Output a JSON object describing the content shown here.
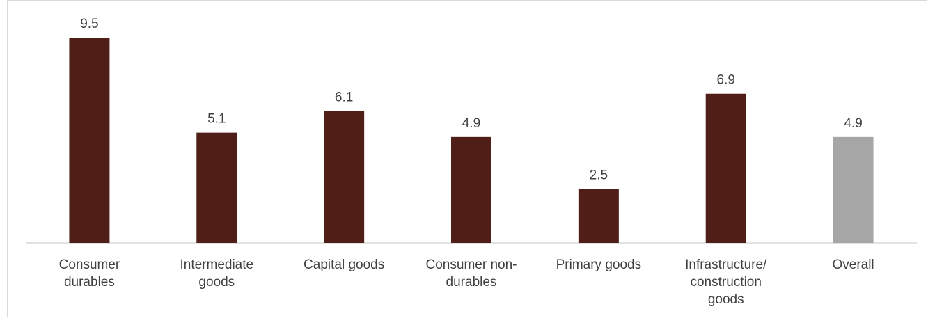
{
  "chart_data": {
    "type": "bar",
    "categories": [
      "Consumer durables",
      "Intermediate goods",
      "Capital goods",
      "Consumer non-durables",
      "Primary goods",
      "Infrastructure/ construction goods",
      "Overall"
    ],
    "category_label_lines": [
      [
        "Consumer",
        "durables"
      ],
      [
        "Intermediate",
        "goods"
      ],
      [
        "Capital goods"
      ],
      [
        "Consumer non-",
        "durables"
      ],
      [
        "Primary goods"
      ],
      [
        "Infrastructure/",
        "construction",
        "goods"
      ],
      [
        "Overall"
      ]
    ],
    "values": [
      9.5,
      5.1,
      6.1,
      4.9,
      2.5,
      6.9,
      4.9
    ],
    "value_labels": [
      "9.5",
      "5.1",
      "6.1",
      "4.9",
      "2.5",
      "6.9",
      "4.9"
    ],
    "bar_colors": [
      "#4f1e17",
      "#4f1e17",
      "#4f1e17",
      "#4f1e17",
      "#4f1e17",
      "#4f1e17",
      "#a6a6a6"
    ],
    "title": "",
    "xlabel": "",
    "ylabel": "",
    "ylim": [
      0,
      9.5
    ],
    "grid": false,
    "legend": "none"
  },
  "colors": {
    "axis": "#d9d9d9",
    "text": "#404040",
    "border": "#d9d9d9"
  }
}
